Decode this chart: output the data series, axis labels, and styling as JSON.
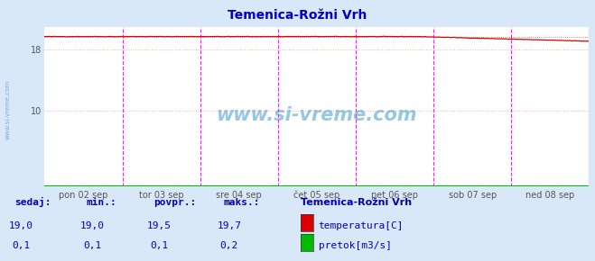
{
  "title": "Temenica-Rožni Vrh",
  "title_color": "#0000cc",
  "bg_color": "#d8e8f8",
  "plot_bg_color": "#ffffff",
  "grid_color": "#ffaaaa",
  "vline_color": "#ff00ff",
  "ylim": [
    0,
    20.9
  ],
  "n_points": 336,
  "temp_color": "#dd0000",
  "flow_color": "#00bb00",
  "tick_labels": [
    "pon 02 sep",
    "tor 03 sep",
    "sre 04 sep",
    "čet 05 sep",
    "pet 06 sep",
    "sob 07 sep",
    "ned 08 sep"
  ],
  "watermark": "www.si-vreme.com",
  "watermark_color": "#4499cc",
  "left_label": "www.si-vreme.com",
  "footer_bold_color": "#0000bb",
  "footer_val_color": "#0000cc",
  "legend_title": "Temenica-Rožni Vrh",
  "legend_temp_label": "temperatura[C]",
  "legend_flow_label": "pretok[m3/s]",
  "headers": [
    "sedaj:",
    "min.:",
    "povpr.:",
    "maks.:"
  ],
  "vals_temp": [
    "19,0",
    "19,0",
    "19,5",
    "19,7"
  ],
  "vals_flow": [
    "0,1",
    "0,1",
    "0,1",
    "0,2"
  ],
  "yticks": [
    10,
    18
  ],
  "ytick_labels": [
    "10",
    "18"
  ]
}
